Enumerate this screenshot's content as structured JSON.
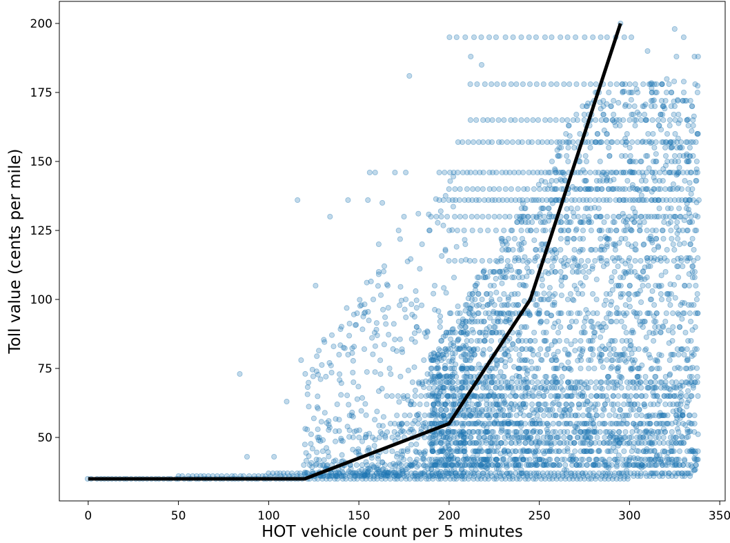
{
  "chart_data": {
    "type": "scatter",
    "title": "",
    "xlabel": "HOT vehicle count per 5 minutes",
    "ylabel": "Toll value (cents per mile)",
    "xlim": [
      -16,
      353
    ],
    "ylim": [
      27,
      208
    ],
    "x_ticks": [
      0,
      50,
      100,
      150,
      200,
      250,
      300,
      350
    ],
    "y_ticks": [
      50,
      75,
      100,
      125,
      150,
      175,
      200
    ],
    "grid": false,
    "legend": "none",
    "colors": {
      "scatter": "#1f77b4",
      "line": "#000000"
    },
    "scatter_alpha": 0.28,
    "toll_levels": [
      35,
      36,
      37,
      40,
      42,
      45,
      48,
      50,
      52,
      55,
      58,
      60,
      62,
      65,
      68,
      70,
      72,
      75,
      78,
      80,
      82,
      85,
      88,
      90,
      92,
      95,
      98,
      100,
      102,
      105,
      108,
      110,
      112,
      115,
      118,
      120,
      122,
      125,
      128,
      130,
      133,
      136,
      140,
      143,
      146,
      150,
      152,
      155,
      157,
      160,
      163,
      165,
      167,
      170,
      172,
      175,
      178,
      182,
      185,
      188,
      195,
      198
    ],
    "points": [
      [
        84,
        73
      ],
      [
        116,
        136
      ],
      [
        126,
        105
      ],
      [
        118,
        78
      ],
      [
        110,
        63
      ],
      [
        88,
        43
      ],
      [
        103,
        43
      ],
      [
        134,
        130
      ],
      [
        144,
        136
      ],
      [
        155,
        136
      ],
      [
        163,
        135
      ],
      [
        178,
        181
      ],
      [
        156,
        146
      ],
      [
        159,
        146
      ],
      [
        170,
        146
      ],
      [
        176,
        146
      ],
      [
        161,
        120
      ],
      [
        175,
        130
      ],
      [
        147,
        70
      ],
      [
        144,
        80
      ],
      [
        139,
        80
      ],
      [
        153,
        82
      ],
      [
        149,
        95
      ],
      [
        153,
        95
      ],
      [
        158,
        100
      ],
      [
        161,
        110
      ],
      [
        166,
        105
      ],
      [
        172,
        125
      ],
      [
        167,
        75
      ],
      [
        176,
        100
      ],
      [
        182,
        90
      ],
      [
        185,
        120
      ],
      [
        189,
        125
      ],
      [
        195,
        90
      ],
      [
        192,
        105
      ],
      [
        181,
        56
      ],
      [
        171,
        43
      ],
      [
        162,
        52
      ],
      [
        146,
        58
      ],
      [
        138,
        62
      ],
      [
        130,
        45
      ],
      [
        128,
        50
      ],
      [
        186,
        78
      ],
      [
        190,
        75
      ],
      [
        201,
        95
      ],
      [
        209,
        120
      ],
      [
        325,
        198
      ],
      [
        330,
        195
      ],
      [
        336,
        188
      ],
      [
        338,
        188
      ],
      [
        326,
        188
      ],
      [
        310,
        190
      ],
      [
        212,
        188
      ],
      [
        218,
        185
      ],
      [
        295,
        200
      ]
    ],
    "bands": [
      {
        "y": 195,
        "x_from": 200,
        "x_to": 305,
        "density": 0.5
      },
      {
        "y": 178,
        "x_from": 212,
        "x_to": 325,
        "density": 0.6
      },
      {
        "y": 165,
        "x_from": 212,
        "x_to": 335,
        "density": 0.7
      },
      {
        "y": 157,
        "x_from": 205,
        "x_to": 338,
        "density": 0.8
      },
      {
        "y": 146,
        "x_from": 195,
        "x_to": 338,
        "density": 0.9
      },
      {
        "y": 140,
        "x_from": 200,
        "x_to": 338,
        "density": 0.7
      },
      {
        "y": 136,
        "x_from": 195,
        "x_to": 338,
        "density": 1.0
      },
      {
        "y": 130,
        "x_from": 190,
        "x_to": 338,
        "density": 0.7
      },
      {
        "y": 125,
        "x_from": 200,
        "x_to": 338,
        "density": 0.5
      },
      {
        "y": 114,
        "x_from": 200,
        "x_to": 338,
        "density": 0.6
      },
      {
        "y": 95,
        "x_from": 200,
        "x_to": 330,
        "density": 0.4
      },
      {
        "y": 70,
        "x_from": 180,
        "x_to": 338,
        "density": 0.8
      },
      {
        "y": 68,
        "x_from": 200,
        "x_to": 330,
        "density": 0.6
      },
      {
        "y": 65,
        "x_from": 165,
        "x_to": 335,
        "density": 0.7
      },
      {
        "y": 62,
        "x_from": 180,
        "x_to": 330,
        "density": 0.6
      },
      {
        "y": 58,
        "x_from": 175,
        "x_to": 335,
        "density": 0.6
      },
      {
        "y": 55,
        "x_from": 170,
        "x_to": 338,
        "density": 0.7
      },
      {
        "y": 52,
        "x_from": 170,
        "x_to": 330,
        "density": 0.6
      },
      {
        "y": 50,
        "x_from": 150,
        "x_to": 330,
        "density": 0.6
      },
      {
        "y": 48,
        "x_from": 190,
        "x_to": 330,
        "density": 0.8
      },
      {
        "y": 45,
        "x_from": 160,
        "x_to": 335,
        "density": 0.5
      },
      {
        "y": 42,
        "x_from": 175,
        "x_to": 325,
        "density": 0.6
      },
      {
        "y": 40,
        "x_from": 120,
        "x_to": 330,
        "density": 0.7
      },
      {
        "y": 37,
        "x_from": 100,
        "x_to": 335,
        "density": 1.0
      },
      {
        "y": 36,
        "x_from": 50,
        "x_to": 335,
        "density": 0.9
      },
      {
        "y": 35,
        "x_from": 0,
        "x_to": 300,
        "density": 1.0
      }
    ],
    "cloud": {
      "x_from": 190,
      "x_to": 338,
      "y_from": 38,
      "y_to": 180,
      "center_x": 275,
      "center_y": 85
    },
    "fit_line": {
      "x": [
        0,
        120,
        200,
        245,
        295
      ],
      "y": [
        35,
        35,
        55,
        100,
        200
      ]
    }
  }
}
